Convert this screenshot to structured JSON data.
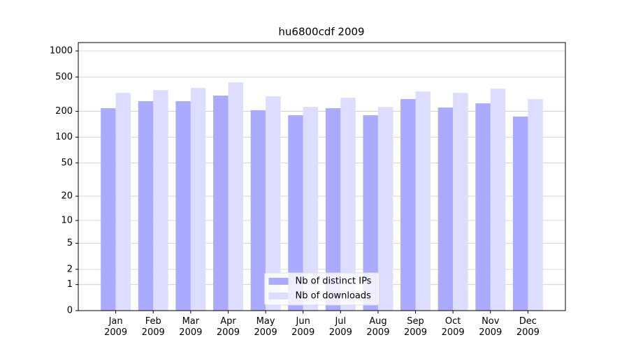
{
  "chart_data": {
    "type": "bar",
    "title": "hu6800cdf 2009",
    "categories": [
      "Jan\n2009",
      "Feb\n2009",
      "Mar\n2009",
      "Apr\n2009",
      "May\n2009",
      "Jun\n2009",
      "Jul\n2009",
      "Aug\n2009",
      "Sep\n2009",
      "Oct\n2009",
      "Nov\n2009",
      "Dec\n2009"
    ],
    "series": [
      {
        "name": "Nb of distinct IPs",
        "color": "#aaaaff",
        "values": [
          217,
          262,
          262,
          304,
          206,
          180,
          217,
          180,
          277,
          221,
          247,
          174
        ]
      },
      {
        "name": "Nb of downloads",
        "color": "#ddddff",
        "values": [
          327,
          352,
          373,
          433,
          298,
          225,
          287,
          225,
          339,
          327,
          366,
          277
        ]
      }
    ],
    "yscale": "log1p",
    "ylim": [
      0,
      1250
    ],
    "yticks": [
      0,
      1,
      2,
      5,
      10,
      20,
      50,
      100,
      200,
      500,
      1000
    ],
    "grid": true,
    "legend": "lower center"
  }
}
